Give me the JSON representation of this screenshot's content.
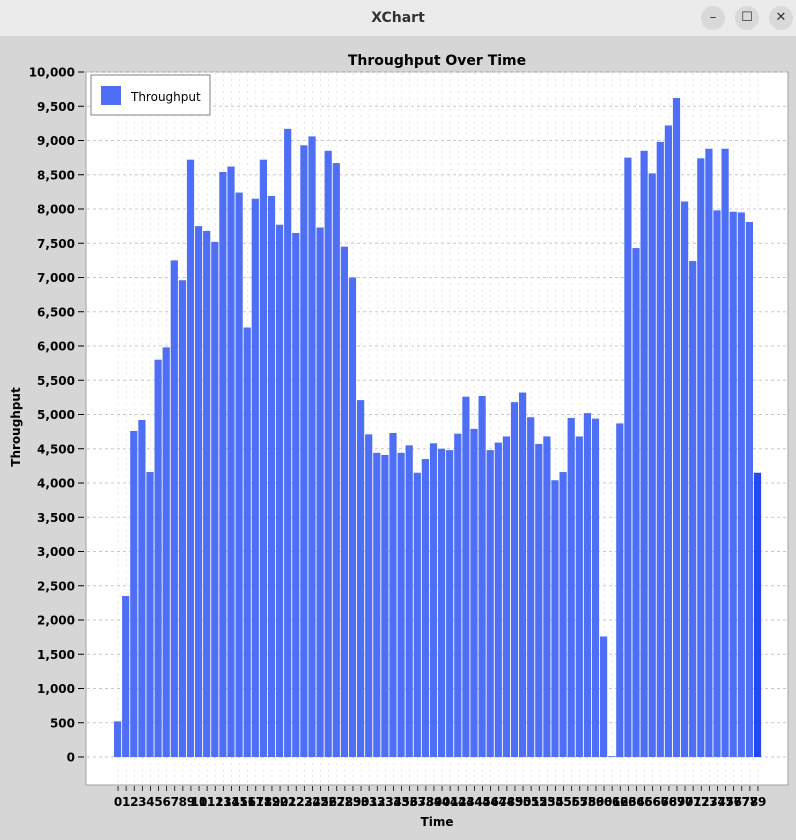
{
  "window": {
    "title": "XChart",
    "minimize_icon": "minimize-icon",
    "maximize_icon": "maximize-icon",
    "close_icon": "close-icon"
  },
  "chart_data": {
    "type": "bar",
    "title": "Throughput Over Time",
    "xlabel": "Time",
    "ylabel": "Throughput",
    "ylim": [
      0,
      10000
    ],
    "yticks": [
      0,
      500,
      1000,
      1500,
      2000,
      2500,
      3000,
      3500,
      4000,
      4500,
      5000,
      5500,
      6000,
      6500,
      7000,
      7500,
      8000,
      8500,
      9000,
      9500,
      10000
    ],
    "ytick_labels": [
      "0",
      "500",
      "1,000",
      "1,500",
      "2,000",
      "2,500",
      "3,000",
      "3,500",
      "4,000",
      "4,500",
      "5,000",
      "5,500",
      "6,000",
      "6,500",
      "7,000",
      "7,500",
      "8,000",
      "8,500",
      "9,000",
      "9,500",
      "10,000"
    ],
    "grid": true,
    "legend": {
      "position": "top-left",
      "entries": [
        "Throughput"
      ]
    },
    "bar_color": "#4d6ef5",
    "last_bar_color": "#2447f2",
    "categories": [
      "0",
      "1",
      "2",
      "3",
      "4",
      "5",
      "6",
      "7",
      "8",
      "9",
      "10",
      "11",
      "12",
      "13",
      "14",
      "15",
      "16",
      "17",
      "18",
      "19",
      "20",
      "21",
      "22",
      "23",
      "24",
      "25",
      "26",
      "27",
      "28",
      "29",
      "30",
      "31",
      "32",
      "33",
      "34",
      "35",
      "36",
      "37",
      "38",
      "39",
      "40",
      "41",
      "42",
      "43",
      "44",
      "45",
      "46",
      "47",
      "48",
      "49",
      "50",
      "51",
      "52",
      "53",
      "54",
      "55",
      "56",
      "57",
      "58",
      "59",
      "60",
      "61",
      "62",
      "63",
      "64",
      "65",
      "66",
      "67",
      "68",
      "69",
      "70",
      "71",
      "72",
      "73",
      "74",
      "75",
      "76",
      "77",
      "78",
      "79"
    ],
    "series": [
      {
        "name": "Throughput",
        "values": [
          520,
          2350,
          4760,
          4920,
          4160,
          5800,
          5980,
          7250,
          6960,
          8720,
          7750,
          7680,
          7520,
          8540,
          8620,
          8240,
          6270,
          8150,
          8720,
          8190,
          7770,
          9170,
          7650,
          8930,
          9060,
          7730,
          8850,
          8670,
          7450,
          7000,
          5210,
          4710,
          4440,
          4410,
          4730,
          4440,
          4550,
          4150,
          4350,
          4580,
          4500,
          4480,
          4720,
          5260,
          4790,
          5270,
          4480,
          4590,
          4680,
          5180,
          5320,
          4960,
          4570,
          4680,
          4040,
          4160,
          4950,
          4680,
          5020,
          4940,
          1760,
          10,
          4870,
          8750,
          7430,
          8850,
          8520,
          8980,
          9220,
          9620,
          8110,
          7240,
          8740,
          8880,
          7980,
          8880,
          7960,
          7950,
          7810,
          4150
        ]
      }
    ]
  }
}
